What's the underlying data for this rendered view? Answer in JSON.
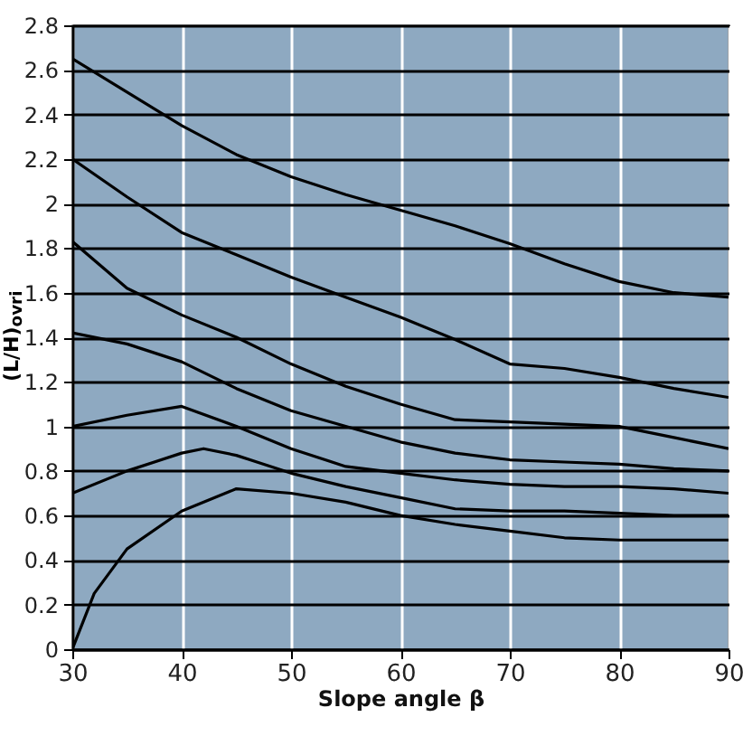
{
  "chart_data": {
    "type": "line",
    "xlabel": "Slope angle β",
    "ylabel": "(L/H)$_{ovri}$",
    "xlim": [
      30,
      90
    ],
    "ylim": [
      0,
      2.8
    ],
    "xticks": [
      30,
      40,
      50,
      60,
      70,
      80,
      90
    ],
    "yticks": [
      0,
      0.2,
      0.4,
      0.6,
      0.8,
      1,
      1.2,
      1.4,
      1.6,
      1.8,
      2,
      2.2,
      2.4,
      2.6,
      2.8
    ],
    "grid": true,
    "x": [
      30,
      35,
      40,
      45,
      50,
      55,
      60,
      65,
      70,
      75,
      80,
      85,
      90
    ],
    "series": [
      {
        "color": "#000000",
        "values": [
          2.65,
          2.5,
          2.35,
          2.22,
          2.12,
          2.04,
          1.97,
          1.9,
          1.82,
          1.73,
          1.65,
          1.6,
          1.58
        ]
      },
      {
        "color": "#000000",
        "values": [
          2.2,
          2.03,
          1.87,
          1.77,
          1.67,
          1.58,
          1.49,
          1.39,
          1.28,
          1.26,
          1.22,
          1.17,
          1.13
        ]
      },
      {
        "color": "#000000",
        "values": [
          1.83,
          1.62,
          1.5,
          1.4,
          1.28,
          1.18,
          1.1,
          1.03,
          1.02,
          1.01,
          1.0,
          0.95,
          0.9
        ]
      },
      {
        "color": "#000000",
        "values": [
          1.42,
          1.37,
          1.29,
          1.17,
          1.07,
          1.0,
          0.93,
          0.88,
          0.85,
          0.84,
          0.83,
          0.81,
          0.8
        ]
      },
      {
        "color": "#000000",
        "values": [
          1.0,
          1.05,
          1.09,
          1.0,
          0.9,
          0.82,
          0.79,
          0.76,
          0.74,
          0.73,
          0.73,
          0.72,
          0.7
        ]
      },
      {
        "color": "#000000",
        "x": [
          30,
          35,
          40,
          42,
          45,
          50,
          55,
          60,
          65,
          70,
          75,
          80,
          85,
          90
        ],
        "values": [
          0.7,
          0.8,
          0.88,
          0.9,
          0.87,
          0.79,
          0.73,
          0.68,
          0.63,
          0.62,
          0.62,
          0.61,
          0.6,
          0.6
        ]
      },
      {
        "color": "#000000",
        "x": [
          30,
          32,
          35,
          40,
          45,
          50,
          55,
          60,
          65,
          70,
          75,
          80,
          90
        ],
        "values": [
          0,
          0.25,
          0.45,
          0.62,
          0.72,
          0.7,
          0.66,
          0.6,
          0.56,
          0.53,
          0.5,
          0.49,
          0.49
        ]
      }
    ]
  }
}
